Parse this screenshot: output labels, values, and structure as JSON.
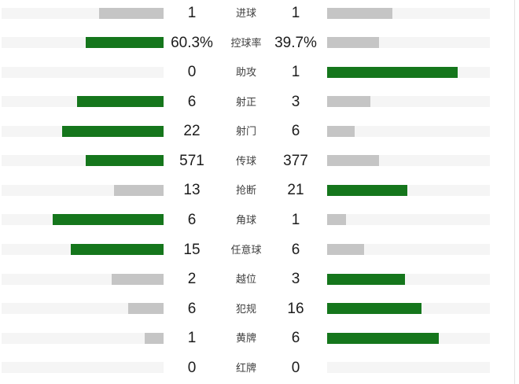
{
  "colors": {
    "green": "#15761c",
    "gray_bar": "#c5c5c5",
    "track": "#f5f5f5",
    "value_text": "#1c1c1c",
    "label_text": "#3f3f3f",
    "border": "#e2e2e2"
  },
  "chart_data": {
    "type": "bar",
    "orientation": "horizontal-paired-comparison",
    "categories": [
      "进球",
      "控球率",
      "助攻",
      "射正",
      "射门",
      "传球",
      "抢断",
      "角球",
      "任意球",
      "越位",
      "犯规",
      "黄牌",
      "红牌"
    ],
    "series": [
      {
        "name": "home",
        "values": [
          1,
          60.3,
          0,
          6,
          22,
          571,
          13,
          6,
          15,
          2,
          6,
          1,
          0
        ]
      },
      {
        "name": "away",
        "values": [
          1,
          39.7,
          1,
          3,
          6,
          377,
          21,
          1,
          6,
          3,
          16,
          6,
          0
        ]
      }
    ],
    "value_labels": {
      "home": [
        "1",
        "60.3%",
        "0",
        "6",
        "22",
        "571",
        "13",
        "6",
        "15",
        "2",
        "6",
        "1",
        "0"
      ],
      "away": [
        "1",
        "39.7%",
        "1",
        "3",
        "6",
        "377",
        "21",
        "1",
        "6",
        "3",
        "16",
        "6",
        "0"
      ]
    },
    "layout": {
      "bar_width_rule": "bar width = value / (home + away) * 80% of track width",
      "highlight_rule": "larger value bar is green, smaller or equal value bar is gray",
      "home_bars_grow": "right-to-left",
      "away_bars_grow": "left-to-right",
      "grid": false,
      "legend": false,
      "title": ""
    }
  }
}
